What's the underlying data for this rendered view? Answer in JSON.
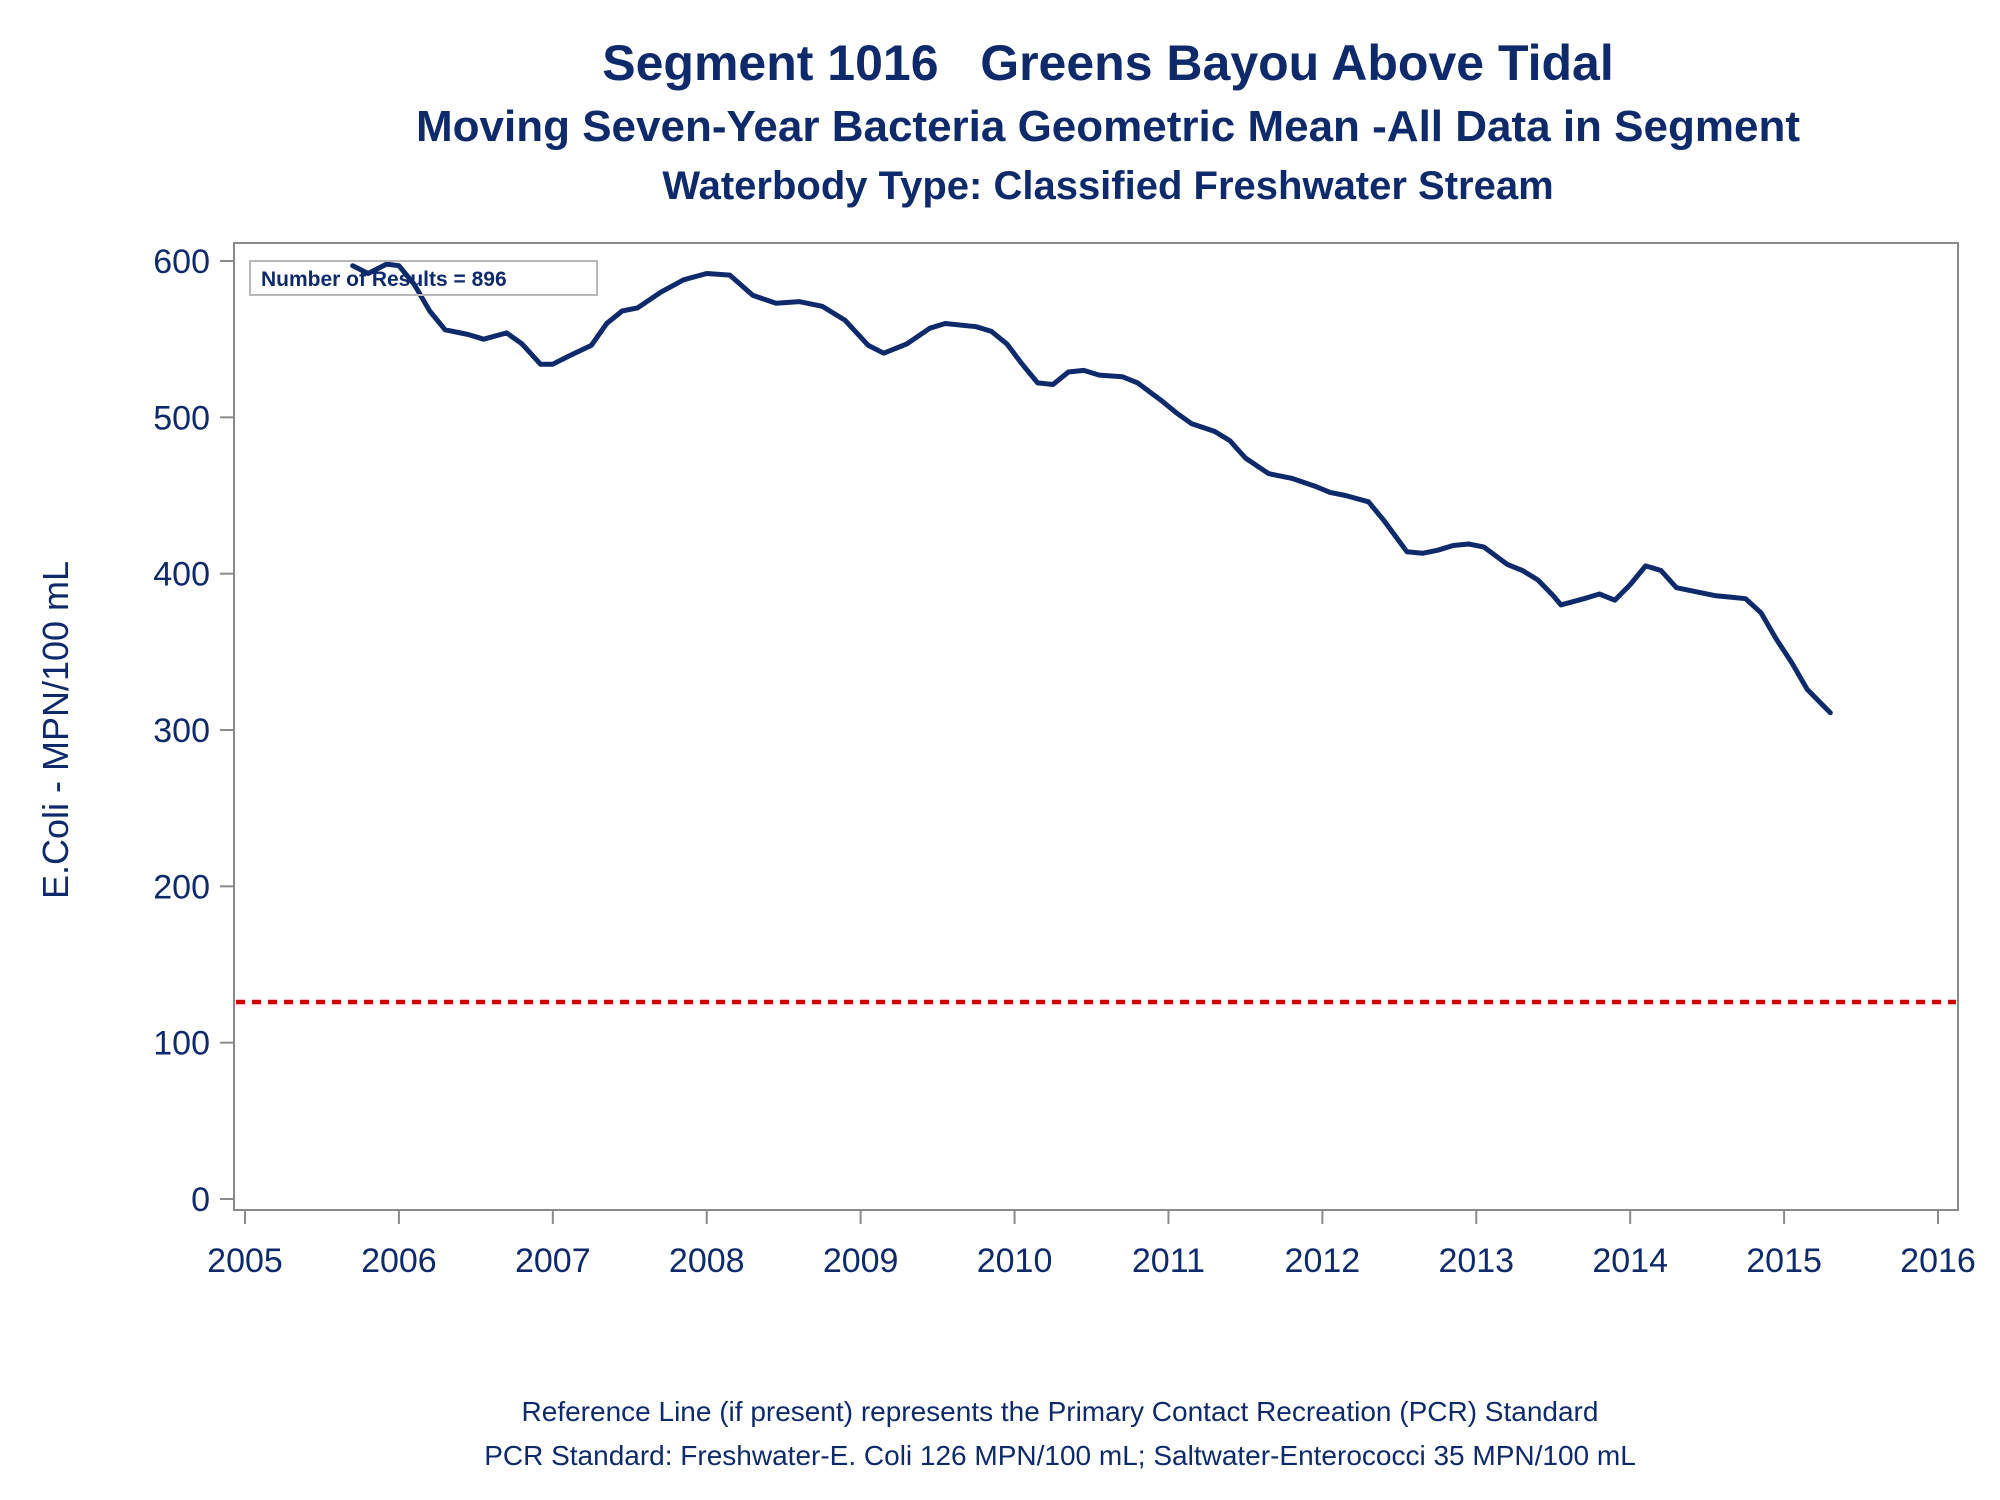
{
  "chart_data": {
    "type": "line",
    "title": "Segment 1016   Greens Bayou Above Tidal",
    "subtitle": "Moving Seven-Year Bacteria Geometric Mean -All Data in Segment",
    "subtitle2": "Waterbody Type: Classified Freshwater Stream",
    "xlabel": "",
    "ylabel": "E.Coli - MPN/100 mL",
    "xlim": [
      2005,
      2016
    ],
    "ylim": [
      0,
      610
    ],
    "x_ticks": [
      "2005",
      "2006",
      "2007",
      "2008",
      "2009",
      "2010",
      "2011",
      "2012",
      "2013",
      "2014",
      "2015",
      "2016"
    ],
    "y_ticks": [
      "0",
      "100",
      "200",
      "300",
      "400",
      "500",
      "600"
    ],
    "grid": false,
    "annotation": "Number of Results = 896",
    "reference_line": {
      "y": 126,
      "color": "#cc0000",
      "style": "dotted"
    },
    "series": [
      {
        "color": "#0f2a6b",
        "x": [
          2005.7,
          2005.8,
          2005.92,
          2006.0,
          2006.1,
          2006.2,
          2006.3,
          2006.45,
          2006.55,
          2006.7,
          2006.8,
          2006.92,
          2007.0,
          2007.1,
          2007.25,
          2007.35,
          2007.45,
          2007.55,
          2007.7,
          2007.85,
          2008.0,
          2008.15,
          2008.3,
          2008.45,
          2008.6,
          2008.75,
          2008.9,
          2009.05,
          2009.15,
          2009.3,
          2009.45,
          2009.55,
          2009.75,
          2009.85,
          2009.95,
          2010.05,
          2010.15,
          2010.25,
          2010.35,
          2010.45,
          2010.55,
          2010.7,
          2010.8,
          2010.95,
          2011.05,
          2011.15,
          2011.3,
          2011.4,
          2011.5,
          2011.65,
          2011.8,
          2011.95,
          2012.05,
          2012.15,
          2012.3,
          2012.4,
          2012.55,
          2012.65,
          2012.75,
          2012.85,
          2012.95,
          2013.05,
          2013.2,
          2013.3,
          2013.4,
          2013.5,
          2013.55,
          2013.7,
          2013.8,
          2013.9,
          2014.0,
          2014.1,
          2014.2,
          2014.3,
          2014.45,
          2014.55,
          2014.65,
          2014.75,
          2014.85,
          2014.95,
          2015.05,
          2015.15,
          2015.3
        ],
        "values": [
          597,
          592,
          598,
          597,
          585,
          568,
          556,
          553,
          550,
          554,
          547,
          534,
          534,
          539,
          546,
          560,
          568,
          570,
          580,
          588,
          592,
          591,
          578,
          573,
          574,
          571,
          562,
          546,
          541,
          547,
          557,
          560,
          558,
          555,
          547,
          534,
          522,
          521,
          529,
          530,
          527,
          526,
          522,
          511,
          503,
          496,
          491,
          485,
          474,
          464,
          461,
          456,
          452,
          450,
          446,
          434,
          414,
          413,
          415,
          418,
          419,
          417,
          406,
          402,
          396,
          386,
          380,
          384,
          387,
          383,
          393,
          405,
          402,
          391,
          388,
          386,
          385,
          384,
          375,
          358,
          343,
          326,
          311
        ]
      }
    ]
  },
  "footnotes": {
    "line1": "Reference Line (if present) represents the Primary Contact Recreation (PCR) Standard",
    "line2": "PCR Standard: Freshwater-E. Coli 126 MPN/100 mL; Saltwater-Enterococci 35 MPN/100 mL"
  }
}
